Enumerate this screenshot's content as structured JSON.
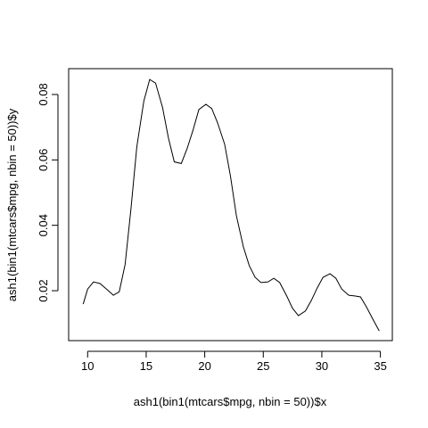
{
  "chart_data": {
    "type": "line",
    "xlabel": "ash1(bin1(mtcars$mpg, nbin = 50))$x",
    "ylabel": "ash1(bin1(mtcars$mpg, nbin = 50))$y",
    "x": [
      9.62,
      10.0,
      10.5,
      11.06,
      11.67,
      12.2,
      12.7,
      13.2,
      13.7,
      14.2,
      14.8,
      15.3,
      15.8,
      16.4,
      16.9,
      17.4,
      18.0,
      18.5,
      19.0,
      19.5,
      20.1,
      20.6,
      21.1,
      21.7,
      22.2,
      22.7,
      23.3,
      23.8,
      24.3,
      24.8,
      25.4,
      25.9,
      26.4,
      27.0,
      27.5,
      28.0,
      28.6,
      29.1,
      29.6,
      30.1,
      30.7,
      31.2,
      31.7,
      32.3,
      32.8,
      33.3,
      33.8,
      34.4,
      34.9
    ],
    "series": [
      {
        "color": "#000000",
        "values": [
          0.0159,
          0.0205,
          0.0227,
          0.0222,
          0.0203,
          0.0186,
          0.0197,
          0.028,
          0.045,
          0.064,
          0.078,
          0.0846,
          0.0835,
          0.076,
          0.0667,
          0.0594,
          0.0589,
          0.0635,
          0.0691,
          0.0754,
          0.077,
          0.0757,
          0.0713,
          0.0648,
          0.055,
          0.043,
          0.0334,
          0.0277,
          0.0241,
          0.0225,
          0.0227,
          0.0238,
          0.0225,
          0.0184,
          0.0146,
          0.0124,
          0.0138,
          0.017,
          0.0208,
          0.0241,
          0.0252,
          0.0238,
          0.0205,
          0.0186,
          0.0184,
          0.0181,
          0.0151,
          0.011,
          0.0077
        ]
      }
    ],
    "xlim": [
      8.38,
      36.02
    ],
    "ylim": [
      0.00474,
      0.0879
    ],
    "xticks": [
      10,
      15,
      20,
      25,
      30,
      35
    ],
    "yticks": [
      0.02,
      0.04,
      0.06,
      0.08
    ]
  }
}
